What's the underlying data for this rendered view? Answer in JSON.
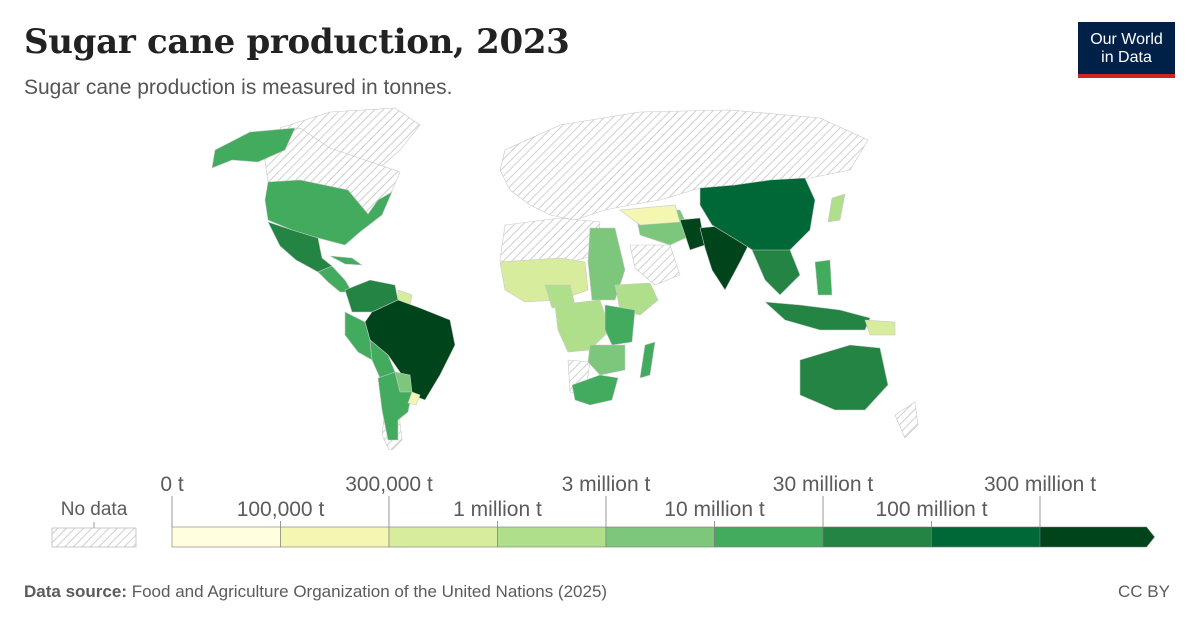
{
  "header": {
    "title": "Sugar cane production, 2023",
    "subtitle": "Sugar cane production is measured in tonnes.",
    "logo_line1": "Our World",
    "logo_line2": "in Data"
  },
  "legend": {
    "no_data_label": "No data",
    "upper_labels": [
      "0 t",
      "300,000 t",
      "3 million t",
      "30 million t",
      "300 million t"
    ],
    "lower_labels": [
      "100,000 t",
      "1 million t",
      "10 million t",
      "100 million t"
    ],
    "colors": [
      "#ffffe0",
      "#f3f7b1",
      "#d7ec9c",
      "#b0df8c",
      "#7cc77c",
      "#43ab5e",
      "#238443",
      "#006837",
      "#00441b"
    ],
    "no_data_color": "#e6e6e6"
  },
  "footer": {
    "source_label": "Data source:",
    "source_text": "Food and Agriculture Organization of the United Nations (2025)",
    "license": "CC BY"
  }
}
